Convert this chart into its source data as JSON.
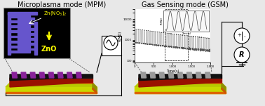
{
  "title_left": "Microplasma mode (MPM)",
  "title_right": "Gas Sensing mode (GSM)",
  "title_fontsize": 7.0,
  "fig_bg": "#e8e8e8",
  "mpm_comb_color": "#6655cc",
  "mpm_text1": "Zn(NO$_3$)$_2$",
  "mpm_text2": "ZnO",
  "mpm_text_color": "#ffff00",
  "mpm_arrow_color": "#ffff00",
  "sensor_base_top_color": "#b8c800",
  "sensor_base_side_color": "#909000",
  "sensor_base_front_color": "#c8d800",
  "sensor_red_top_color": "#cc2200",
  "sensor_red_side_color": "#991100",
  "sensor_dark_top_color": "#1a1a1a",
  "sensor_dark_side_color": "#111111",
  "sensor_orange_stripe": "#dd6600",
  "sensor_finger_mpm": "#882299",
  "sensor_finger_gsm": "#999999",
  "gsm_ylabel": "R(MΩ)",
  "gsm_xlabel": "Time(s)",
  "resistor_label": "R"
}
